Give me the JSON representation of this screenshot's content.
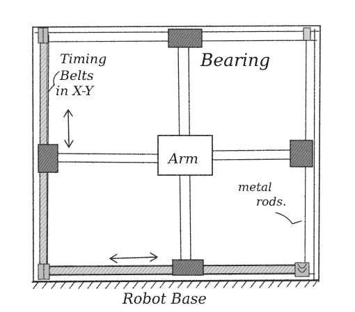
{
  "labels": {
    "timing_belts_line1": "Timing",
    "timing_belts_line2": "Belts",
    "timing_belts_line3": "in X-Y",
    "bearing": "Bearing",
    "arm": "Arm",
    "metal_rods_line1": "metal",
    "metal_rods_line2": "rods.",
    "robot_base": "Robot Base"
  }
}
